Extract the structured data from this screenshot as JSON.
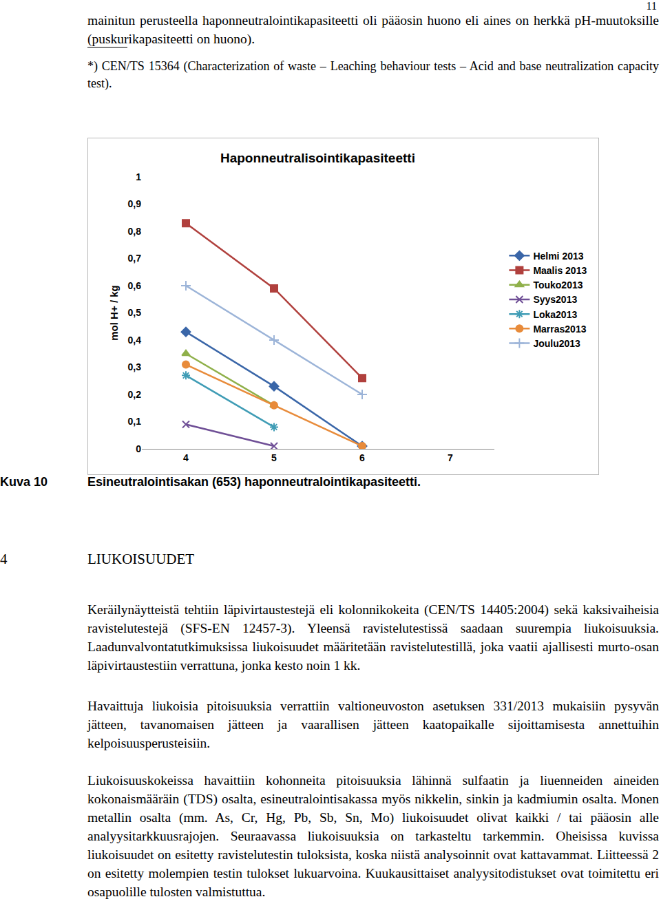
{
  "page_number": "11",
  "top_paragraph": "mainitun perusteella haponneutralointikapasiteetti oli pääosin huono eli aines on herkkä pH-muutoksille (puskurikapasiteetti on huono).",
  "footnote": "*) CEN/TS 15364 (Characterization of waste – Leaching behaviour tests – Acid and base neutralization capacity test).",
  "chart_data": {
    "type": "line",
    "title": "Haponneutralisointikapasiteetti",
    "y_label": "mol H+ / kg",
    "x": [
      4,
      5,
      6
    ],
    "xlim": [
      3.5,
      7.5
    ],
    "xticks": [
      4,
      5,
      6,
      7
    ],
    "ylim": [
      0,
      1
    ],
    "yticks": [
      0,
      {
        "value": 0.1,
        "label": "0,1"
      },
      {
        "value": 0.2,
        "label": "0,2"
      },
      {
        "value": 0.3,
        "label": "0,3"
      },
      {
        "value": 0.4,
        "label": "0,4"
      },
      {
        "value": 0.5,
        "label": "0,5"
      },
      {
        "value": 0.6,
        "label": "0,6"
      },
      {
        "value": 0.7,
        "label": "0,7"
      },
      {
        "value": 0.8,
        "label": "0,8"
      },
      {
        "value": 0.9,
        "label": "0,9"
      },
      1
    ],
    "grid": false,
    "legend": "right",
    "series": [
      {
        "name": "Helmi 2013",
        "color": "#3a66a8",
        "marker": "diamond",
        "values": [
          0.43,
          0.23,
          0.01
        ]
      },
      {
        "name": "Maalis 2013",
        "color": "#b0403d",
        "marker": "square",
        "values": [
          0.83,
          0.59,
          0.26
        ]
      },
      {
        "name": "Touko2013",
        "color": "#8fb04a",
        "marker": "triangle",
        "values": [
          0.35,
          0.16,
          null
        ]
      },
      {
        "name": "Syys2013",
        "color": "#6f4f96",
        "marker": "x",
        "values": [
          0.09,
          0.01,
          null
        ]
      },
      {
        "name": "Loka2013",
        "color": "#3f9cb5",
        "marker": "asterisk",
        "values": [
          0.27,
          0.08,
          null
        ]
      },
      {
        "name": "Marras2013",
        "color": "#e88b3a",
        "marker": "circle",
        "values": [
          0.31,
          0.16,
          0.01
        ]
      },
      {
        "name": "Joulu2013",
        "color": "#9cb4d8",
        "marker": "plus",
        "values": [
          0.6,
          0.4,
          0.2
        ]
      }
    ]
  },
  "caption": {
    "label": "Kuva 10",
    "text": "Esineutralointisakan (653) haponneutralointikapasiteetti."
  },
  "section": {
    "number": "4",
    "title": "LIUKOISUUDET"
  },
  "paragraphs": [
    "Keräilynäytteistä tehtiin läpivirtaustestejä eli kolonnikokeita (CEN/TS 14405:2004) sekä kaksivaiheisia ravistelutestejä (SFS-EN 12457-3). Yleensä ravistelutestissä saadaan suurempia liukoisuuksia. Laadunvalvontatutkimuksissa liukoisuudet määritetään ravistelutestillä, joka vaatii ajallisesti murto-osan läpivirtaustestiin verrattuna, jonka kesto noin 1 kk.",
    "Havaittuja liukoisia pitoisuuksia verrattiin valtioneuvoston asetuksen 331/2013 mukaisiin pysyvän jätteen, tavanomaisen jätteen ja vaarallisen jätteen kaatopaikalle sijoittamisesta annettuihin kelpoisuusperusteisiin.",
    "Liukoisuuskokeissa havaittiin kohonneita pitoisuuksia lähinnä sulfaatin ja liuenneiden aineiden kokonaismääräin (TDS) osalta, esineutralointisakassa myös nikkelin, sinkin ja kadmiumin osalta. Monen metallin osalta (mm. As, Cr, Hg, Pb, Sb, Sn, Mo) liukoisuudet olivat kaikki / tai pääosin alle analyysitarkkuusrajojen. Seuraavassa liukoisuuksia on tarkasteltu tarkemmin. Oheisissa kuvissa liukoisuudet on esitetty ravistelutestin tuloksista, koska niistä analysoinnit ovat kattavammat. Liitteessä 2 on esitetty molempien testin tulokset lukuarvoina. Kuukausittaiset analyysitodistukset ovat toimitettu eri osapuolille tulosten valmistuttua."
  ]
}
